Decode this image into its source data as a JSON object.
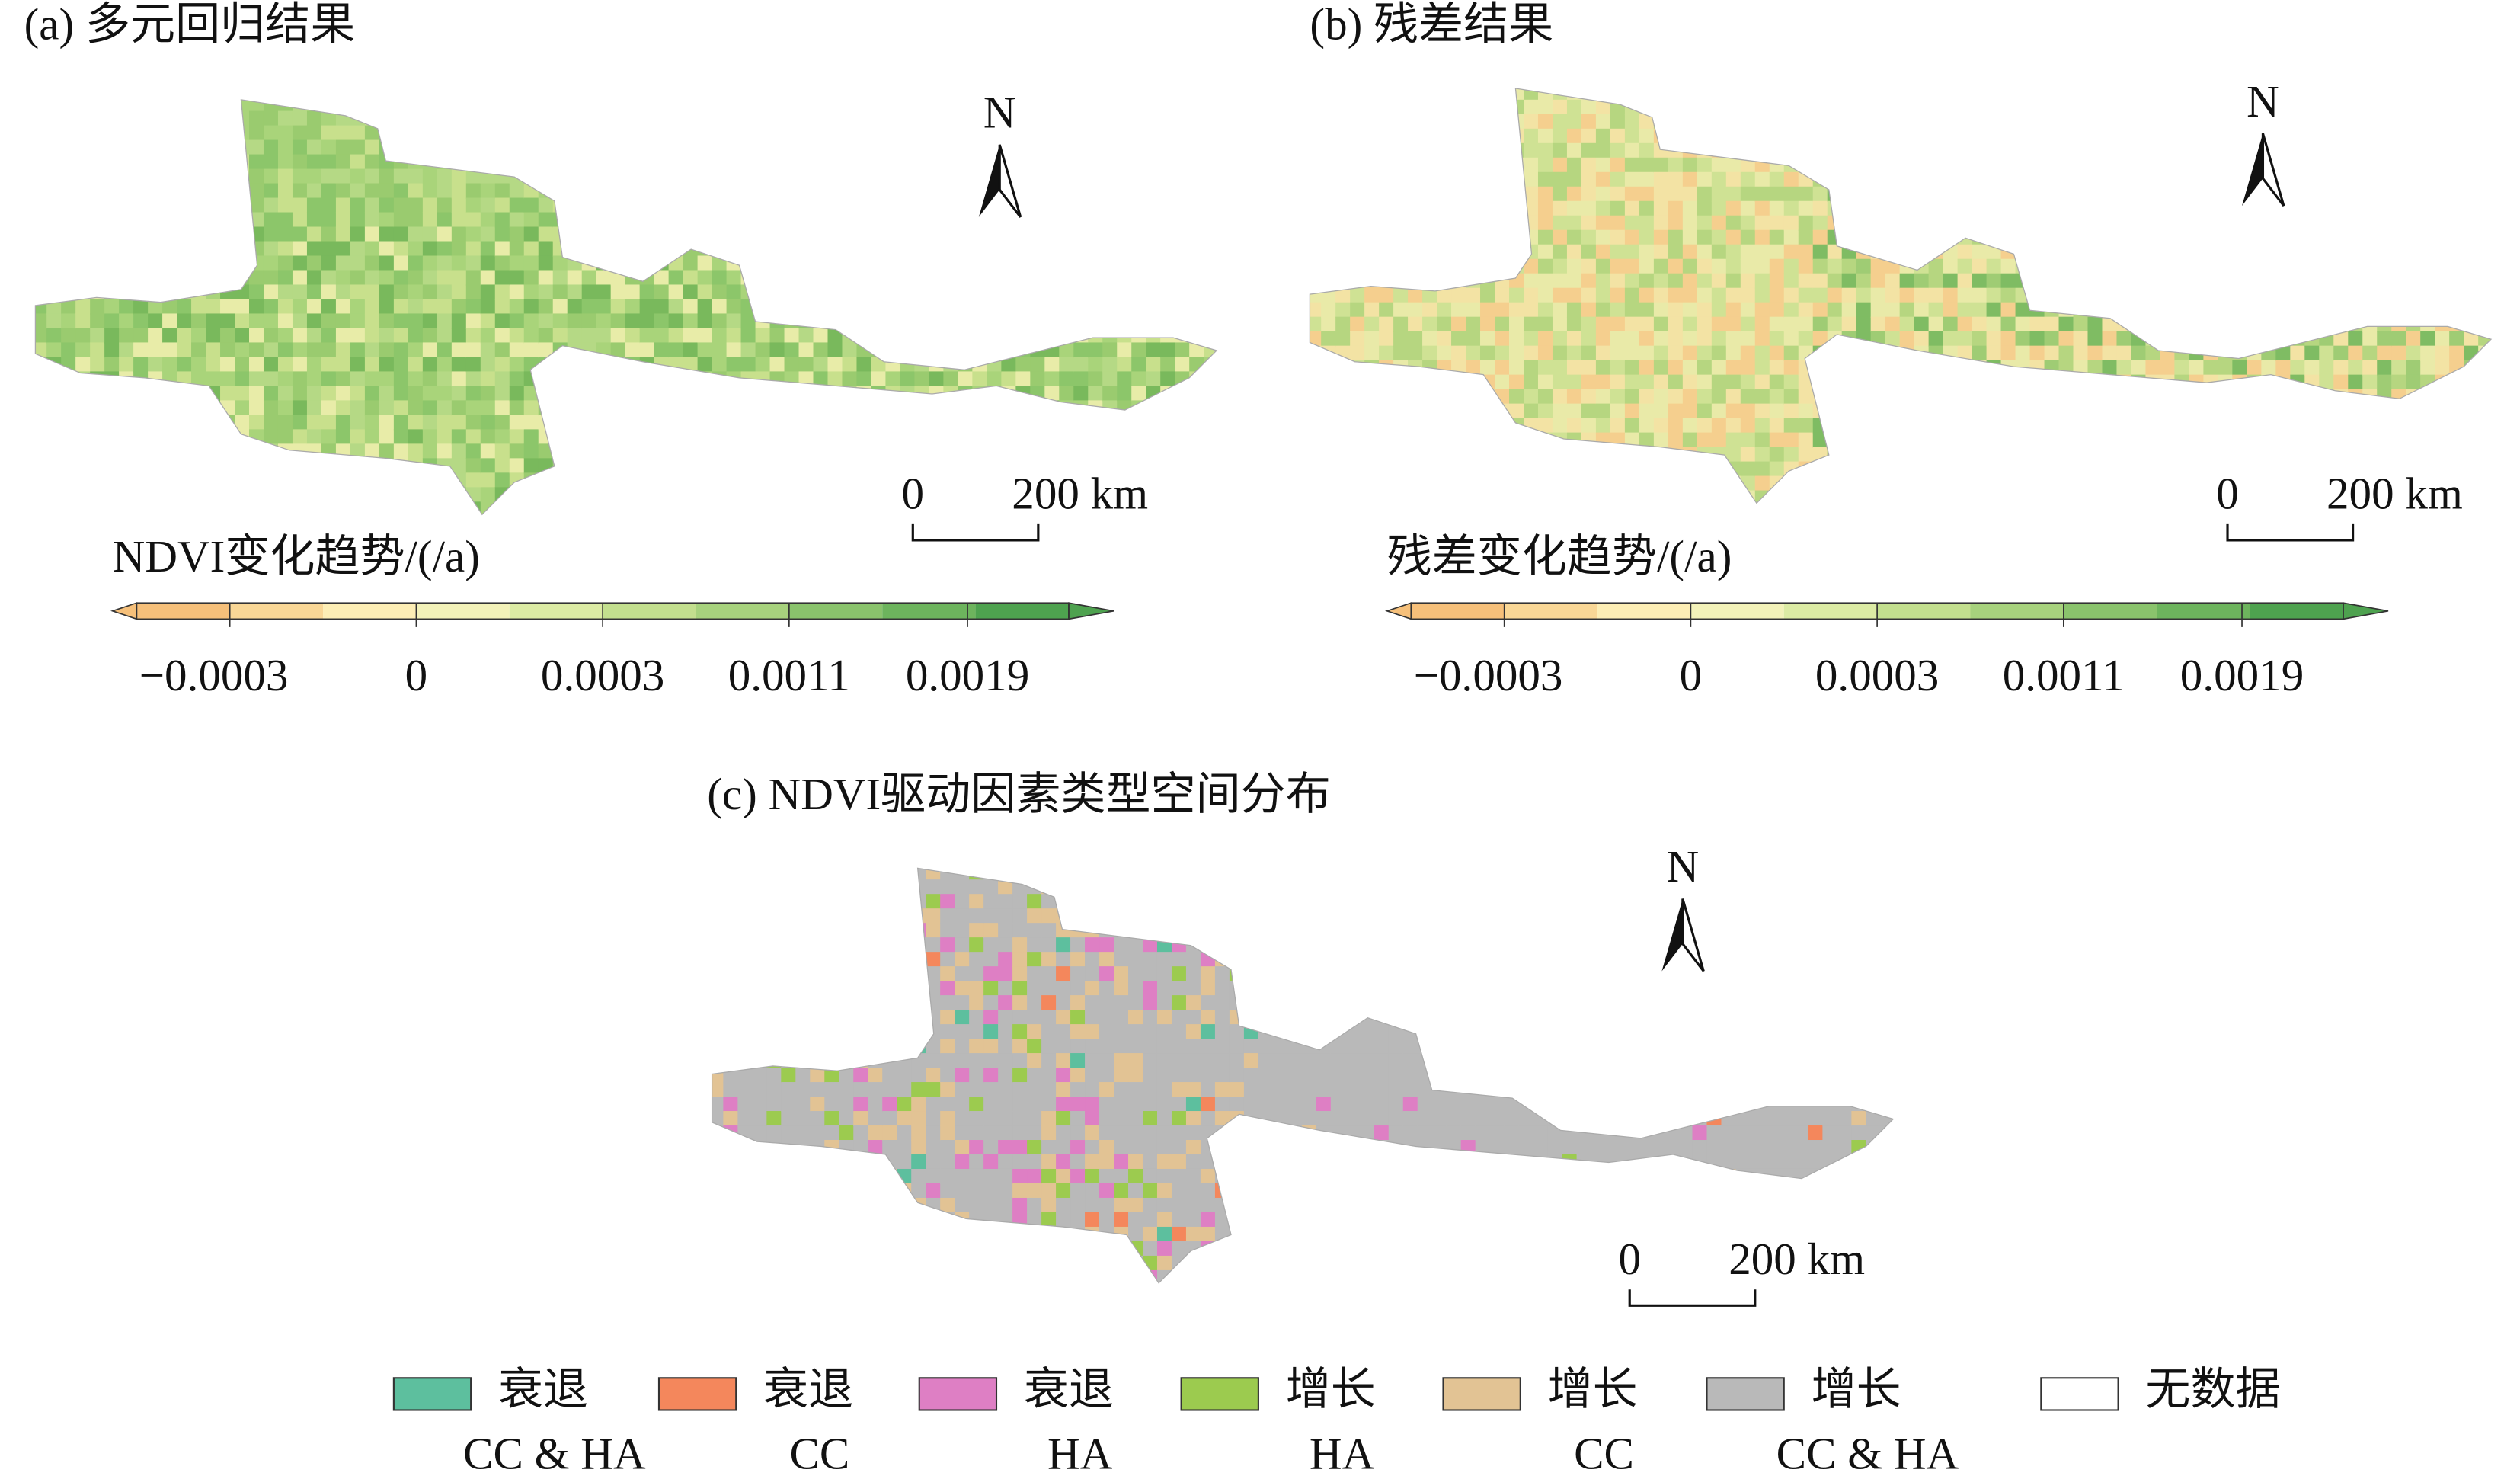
{
  "panels": [
    {
      "title": "(a) 多元回归结果",
      "north": "N",
      "scale_labels": [
        "0",
        "200 km"
      ],
      "colorbar": {
        "title": "NDVI变化趋势/(/a)",
        "ticks": [
          "−0.0003",
          "0",
          "0.0003",
          "0.0011",
          "0.0019"
        ]
      }
    },
    {
      "title": "(b) 残差结果",
      "north": "N",
      "scale_labels": [
        "0",
        "200 km"
      ],
      "colorbar": {
        "title": "残差变化趋势/(/a)",
        "ticks": [
          "−0.0003",
          "0",
          "0.0003",
          "0.0011",
          "0.0019"
        ]
      }
    },
    {
      "title": "(c) NDVI驱动因素类型空间分布",
      "north": "N",
      "scale_labels": [
        "0",
        "200 km"
      ]
    }
  ],
  "legend": [
    {
      "label": "衰退",
      "sub": "CC & HA",
      "color": "#5dbf9e"
    },
    {
      "label": "衰退",
      "sub": "CC",
      "color": "#f4875c"
    },
    {
      "label": "衰退",
      "sub": "HA",
      "color": "#de7fc4"
    },
    {
      "label": "增长",
      "sub": "HA",
      "color": "#9ccb4f"
    },
    {
      "label": "增长",
      "sub": "CC",
      "color": "#e2c394"
    },
    {
      "label": "增长",
      "sub": "CC & HA",
      "color": "#b9b9b9"
    },
    {
      "label": "无数据",
      "color": "#ffffff"
    }
  ]
}
